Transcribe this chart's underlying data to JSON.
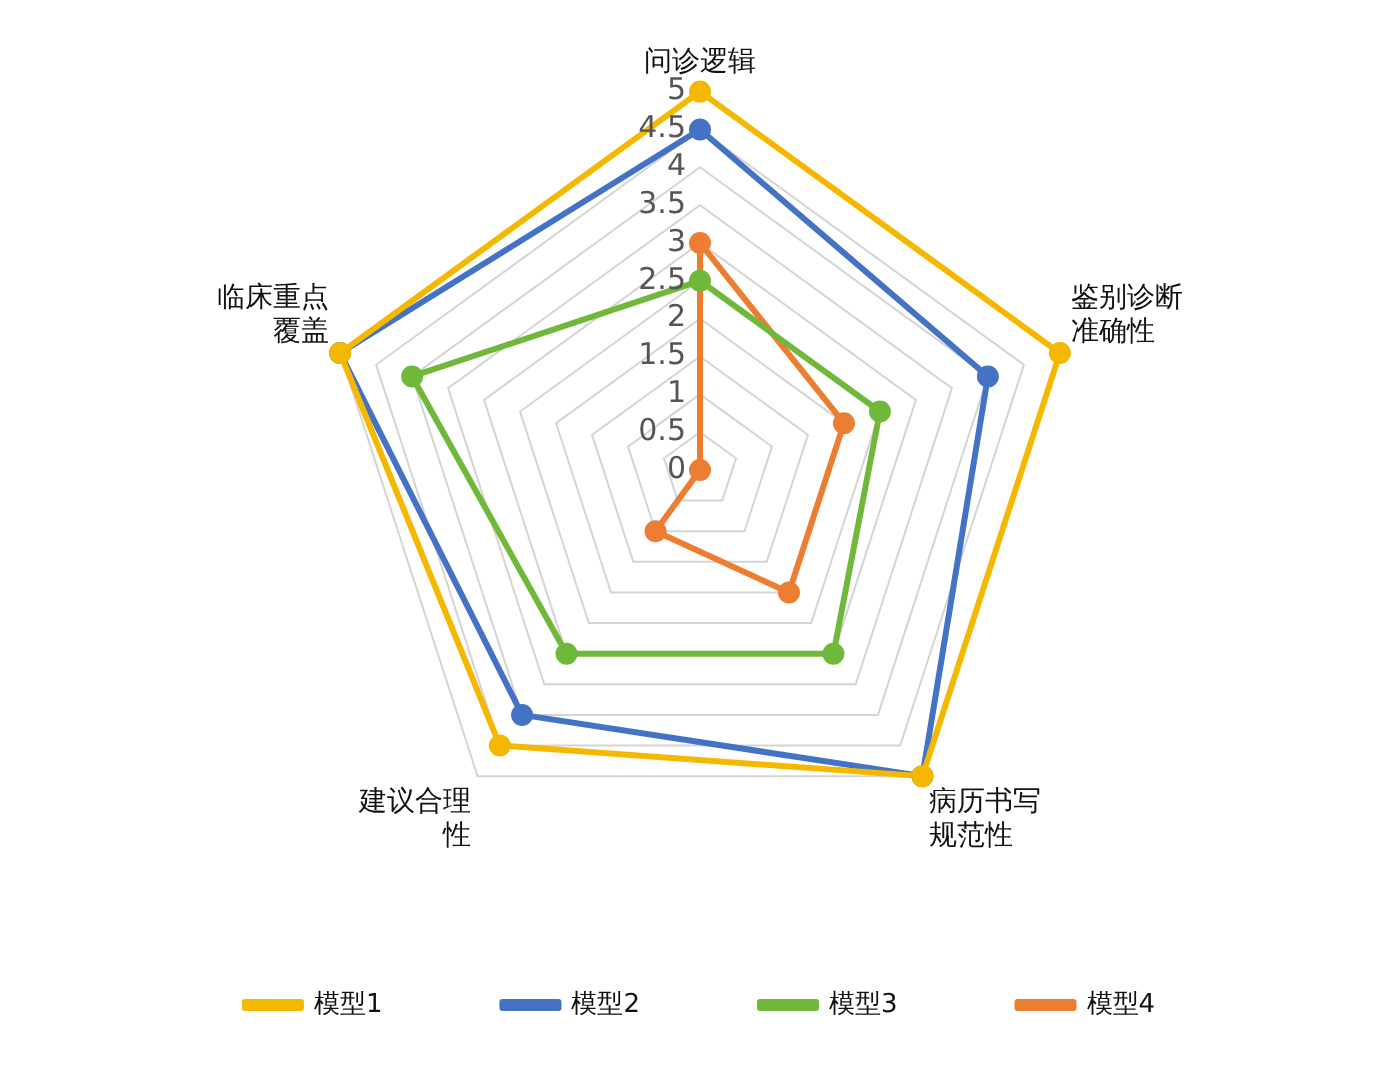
{
  "chart_data": {
    "type": "radar",
    "categories": [
      "问诊逻辑",
      "鉴别诊断准确性",
      "病历书写规范性",
      "建议合理性",
      "临床重点覆盖"
    ],
    "series": [
      {
        "name": "模型1",
        "color": "#f5b800",
        "values": [
          5,
          5,
          5,
          4.5,
          5
        ]
      },
      {
        "name": "模型2",
        "color": "#4472c4",
        "values": [
          4.5,
          4,
          5,
          4,
          5
        ]
      },
      {
        "name": "模型3",
        "color": "#70b83a",
        "values": [
          2.5,
          2.5,
          3,
          3,
          4
        ]
      },
      {
        "name": "模型4",
        "color": "#ed7d31",
        "values": [
          3,
          2,
          2,
          1,
          0
        ]
      }
    ],
    "ylim": [
      0,
      5
    ],
    "yticks": [
      0,
      0.5,
      1,
      1.5,
      2,
      2.5,
      3,
      3.5,
      4,
      4.5,
      5
    ],
    "grid": true,
    "legend": "bottom",
    "marker": "circle",
    "line_style": "solid"
  }
}
